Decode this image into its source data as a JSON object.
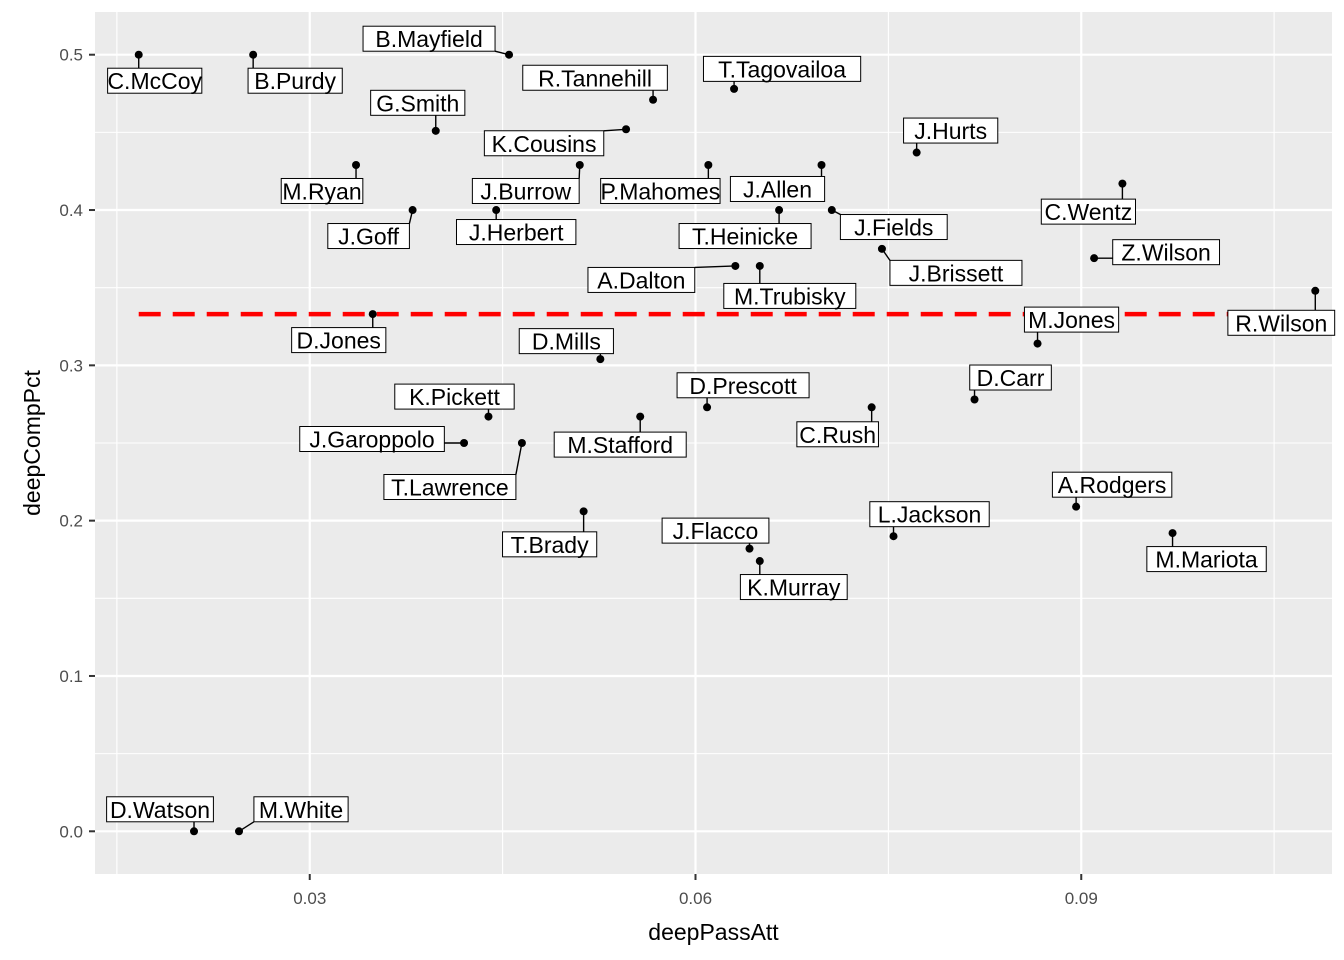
{
  "chart_data": {
    "type": "scatter",
    "xlabel": "deepPassAtt",
    "ylabel": "deepCompPct",
    "xlim": [
      0.0133,
      0.1095
    ],
    "ylim": [
      -0.0275,
      0.5275
    ],
    "x_ticks": [
      0.03,
      0.06,
      0.09
    ],
    "x_tick_labels": [
      "0.03",
      "0.06",
      "0.09"
    ],
    "y_ticks": [
      0.0,
      0.1,
      0.2,
      0.3,
      0.4,
      0.5
    ],
    "y_tick_labels": [
      "0.0",
      "0.1",
      "0.2",
      "0.3",
      "0.4",
      "0.5"
    ],
    "reference_line": {
      "y": 0.333,
      "color": "#ff0000",
      "style": "dashed"
    },
    "grid": true,
    "colors": {
      "panel": "#ebebeb",
      "grid": "#ffffff",
      "point": "#000000",
      "reference": "#ff0000"
    },
    "points": [
      {
        "label": "B.Mayfield",
        "x": 0.0455,
        "y": 0.5
      },
      {
        "label": "C.McCoy",
        "x": 0.0167,
        "y": 0.5
      },
      {
        "label": "B.Purdy",
        "x": 0.0256,
        "y": 0.5
      },
      {
        "label": "R.Tannehill",
        "x": 0.0567,
        "y": 0.471
      },
      {
        "label": "T.Tagovailoa",
        "x": 0.063,
        "y": 0.478
      },
      {
        "label": "G.Smith",
        "x": 0.0398,
        "y": 0.451
      },
      {
        "label": "K.Cousins",
        "x": 0.0546,
        "y": 0.452
      },
      {
        "label": "J.Hurts",
        "x": 0.0772,
        "y": 0.437
      },
      {
        "label": "M.Ryan",
        "x": 0.0336,
        "y": 0.429
      },
      {
        "label": "J.Burrow",
        "x": 0.051,
        "y": 0.429
      },
      {
        "label": "P.Mahomes",
        "x": 0.061,
        "y": 0.429
      },
      {
        "label": "J.Allen",
        "x": 0.0698,
        "y": 0.429
      },
      {
        "label": "C.Wentz",
        "x": 0.0932,
        "y": 0.417
      },
      {
        "label": "J.Goff",
        "x": 0.038,
        "y": 0.4
      },
      {
        "label": "J.Herbert",
        "x": 0.0445,
        "y": 0.4
      },
      {
        "label": "T.Heinicke",
        "x": 0.0665,
        "y": 0.4
      },
      {
        "label": "J.Fields",
        "x": 0.0706,
        "y": 0.4
      },
      {
        "label": "J.Brissett",
        "x": 0.0745,
        "y": 0.375
      },
      {
        "label": "Z.Wilson",
        "x": 0.091,
        "y": 0.369
      },
      {
        "label": "A.Dalton",
        "x": 0.0631,
        "y": 0.364
      },
      {
        "label": "M.Trubisky",
        "x": 0.065,
        "y": 0.364
      },
      {
        "label": "R.Wilson",
        "x": 0.1082,
        "y": 0.348
      },
      {
        "label": "D.Jones",
        "x": 0.0349,
        "y": 0.333
      },
      {
        "label": "M.Jones",
        "x": 0.0866,
        "y": 0.314
      },
      {
        "label": "D.Mills",
        "x": 0.0526,
        "y": 0.304
      },
      {
        "label": "D.Carr",
        "x": 0.0817,
        "y": 0.278
      },
      {
        "label": "D.Prescott",
        "x": 0.0609,
        "y": 0.273
      },
      {
        "label": "C.Rush",
        "x": 0.0737,
        "y": 0.273
      },
      {
        "label": "K.Pickett",
        "x": 0.0439,
        "y": 0.267
      },
      {
        "label": "M.Stafford",
        "x": 0.0557,
        "y": 0.267
      },
      {
        "label": "J.Garoppolo",
        "x": 0.042,
        "y": 0.25
      },
      {
        "label": "T.Lawrence",
        "x": 0.0465,
        "y": 0.25
      },
      {
        "label": "A.Rodgers",
        "x": 0.0896,
        "y": 0.209
      },
      {
        "label": "T.Brady",
        "x": 0.0513,
        "y": 0.206
      },
      {
        "label": "L.Jackson",
        "x": 0.0754,
        "y": 0.19
      },
      {
        "label": "M.Mariota",
        "x": 0.0971,
        "y": 0.192
      },
      {
        "label": "J.Flacco",
        "x": 0.0642,
        "y": 0.182
      },
      {
        "label": "K.Murray",
        "x": 0.065,
        "y": 0.174
      },
      {
        "label": "D.Watson",
        "x": 0.021,
        "y": 0.0
      },
      {
        "label": "M.White",
        "x": 0.0245,
        "y": 0.0
      }
    ]
  }
}
